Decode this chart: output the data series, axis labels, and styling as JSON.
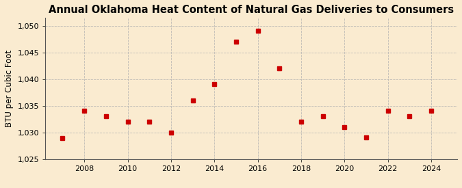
{
  "title": "Annual Oklahoma Heat Content of Natural Gas Deliveries to Consumers",
  "ylabel": "BTU per Cubic Foot",
  "background_color": "#faebd0",
  "years": [
    2007,
    2008,
    2009,
    2010,
    2011,
    2012,
    2013,
    2014,
    2015,
    2016,
    2017,
    2018,
    2019,
    2020,
    2021,
    2022,
    2023,
    2024
  ],
  "values": [
    1028.9,
    1034.0,
    1033.0,
    1032.0,
    1032.0,
    1030.0,
    1036.0,
    1039.0,
    1047.0,
    1049.0,
    1042.0,
    1032.0,
    1033.0,
    1031.0,
    1029.0,
    1034.0,
    1033.0,
    1034.0
  ],
  "marker_color": "#cc0000",
  "marker": "s",
  "marker_size": 4,
  "ylim": [
    1025,
    1051.5
  ],
  "yticks": [
    1025,
    1030,
    1035,
    1040,
    1045,
    1050
  ],
  "xticks": [
    2008,
    2010,
    2012,
    2014,
    2016,
    2018,
    2020,
    2022,
    2024
  ],
  "xlim": [
    2006.2,
    2025.2
  ],
  "grid_color": "#b0b0b0",
  "title_fontsize": 10.5,
  "ylabel_fontsize": 8.5,
  "tick_fontsize": 8,
  "source_fontsize": 7.5
}
